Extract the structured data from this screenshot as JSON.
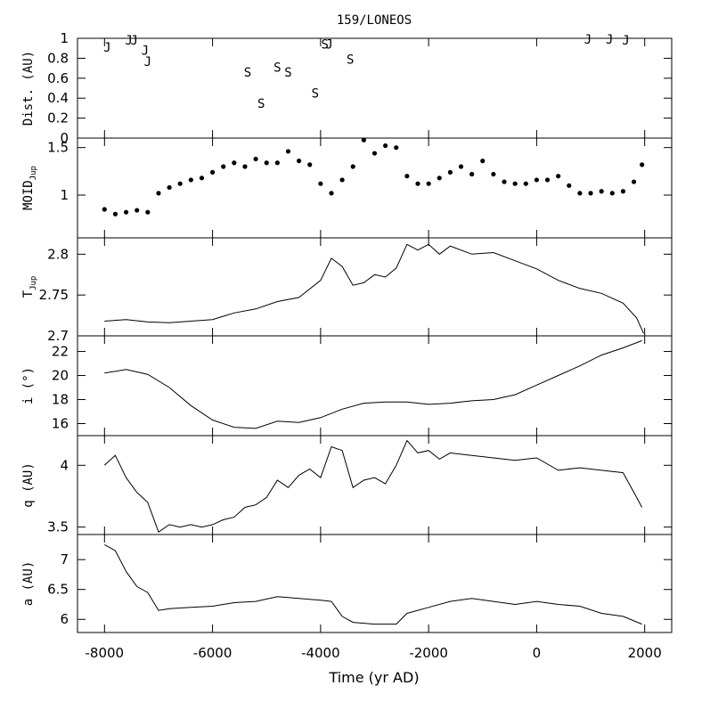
{
  "chart_data": {
    "type": "line",
    "title": "159/LONEOS",
    "xlabel": "Time (yr AD)",
    "xlim": [
      -8500,
      2500
    ],
    "xticks": [
      -8000,
      -6000,
      -4000,
      -2000,
      0,
      2000
    ],
    "grid": false,
    "panels": [
      {
        "id": "dist",
        "type": "scatter",
        "ylabel": "Dist. (AU)",
        "ylim": [
          0,
          1
        ],
        "yticks": [
          0,
          0.2,
          0.4,
          0.6,
          0.8,
          1
        ],
        "ytick_labels": [
          "0",
          "0.2",
          "0.4",
          "0.6",
          "0.8",
          "1"
        ],
        "markers": [
          {
            "t": -7950,
            "v": 0.91,
            "label": "J"
          },
          {
            "t": -7550,
            "v": 0.98,
            "label": "J"
          },
          {
            "t": -7450,
            "v": 0.98,
            "label": "J"
          },
          {
            "t": -7250,
            "v": 0.88,
            "label": "J"
          },
          {
            "t": -7200,
            "v": 0.77,
            "label": "J"
          },
          {
            "t": -5350,
            "v": 0.66,
            "label": "S"
          },
          {
            "t": -5100,
            "v": 0.35,
            "label": "S"
          },
          {
            "t": -4800,
            "v": 0.71,
            "label": "S"
          },
          {
            "t": -4600,
            "v": 0.66,
            "label": "S"
          },
          {
            "t": -4100,
            "v": 0.45,
            "label": "S"
          },
          {
            "t": -3920,
            "v": 0.94,
            "label": "S"
          },
          {
            "t": -3840,
            "v": 0.94,
            "label": "J"
          },
          {
            "t": -3450,
            "v": 0.79,
            "label": "S"
          },
          {
            "t": 950,
            "v": 0.99,
            "label": "J"
          },
          {
            "t": 1350,
            "v": 0.99,
            "label": "J"
          },
          {
            "t": 1650,
            "v": 0.98,
            "label": "J"
          }
        ]
      },
      {
        "id": "moid",
        "type": "scatter",
        "ylabel": "MOID",
        "ylabel_sub": "Jup",
        "ylim": [
          0.55,
          1.6
        ],
        "yticks": [
          1,
          1.5
        ],
        "ytick_labels": [
          "1",
          "1.5"
        ],
        "points": [
          [
            -8000,
            0.85
          ],
          [
            -7800,
            0.8
          ],
          [
            -7600,
            0.82
          ],
          [
            -7400,
            0.84
          ],
          [
            -7200,
            0.82
          ],
          [
            -7000,
            1.02
          ],
          [
            -6800,
            1.08
          ],
          [
            -6600,
            1.12
          ],
          [
            -6400,
            1.16
          ],
          [
            -6200,
            1.18
          ],
          [
            -6000,
            1.24
          ],
          [
            -5800,
            1.3
          ],
          [
            -5600,
            1.34
          ],
          [
            -5400,
            1.3
          ],
          [
            -5200,
            1.38
          ],
          [
            -5000,
            1.34
          ],
          [
            -4800,
            1.34
          ],
          [
            -4600,
            1.46
          ],
          [
            -4400,
            1.36
          ],
          [
            -4200,
            1.32
          ],
          [
            -4000,
            1.12
          ],
          [
            -3800,
            1.02
          ],
          [
            -3600,
            1.16
          ],
          [
            -3400,
            1.3
          ],
          [
            -3200,
            1.58
          ],
          [
            -3000,
            1.44
          ],
          [
            -2800,
            1.52
          ],
          [
            -2600,
            1.5
          ],
          [
            -2400,
            1.2
          ],
          [
            -2200,
            1.12
          ],
          [
            -2000,
            1.12
          ],
          [
            -1800,
            1.18
          ],
          [
            -1600,
            1.24
          ],
          [
            -1400,
            1.3
          ],
          [
            -1200,
            1.22
          ],
          [
            -1000,
            1.36
          ],
          [
            -800,
            1.22
          ],
          [
            -600,
            1.14
          ],
          [
            -400,
            1.12
          ],
          [
            -200,
            1.12
          ],
          [
            0,
            1.16
          ],
          [
            200,
            1.16
          ],
          [
            400,
            1.2
          ],
          [
            600,
            1.1
          ],
          [
            800,
            1.02
          ],
          [
            1000,
            1.02
          ],
          [
            1200,
            1.04
          ],
          [
            1400,
            1.02
          ],
          [
            1600,
            1.04
          ],
          [
            1800,
            1.14
          ],
          [
            1950,
            1.32
          ]
        ]
      },
      {
        "id": "tjup",
        "type": "line",
        "ylabel": "T",
        "ylabel_sub": "Jup",
        "ylim": [
          2.7,
          2.82
        ],
        "yticks": [
          2.7,
          2.75,
          2.8
        ],
        "ytick_labels": [
          "2.7",
          "2.75",
          "2.8"
        ],
        "points": [
          [
            -8000,
            2.718
          ],
          [
            -7600,
            2.72
          ],
          [
            -7200,
            2.717
          ],
          [
            -6800,
            2.716
          ],
          [
            -6400,
            2.718
          ],
          [
            -6000,
            2.72
          ],
          [
            -5600,
            2.728
          ],
          [
            -5200,
            2.733
          ],
          [
            -4800,
            2.742
          ],
          [
            -4400,
            2.747
          ],
          [
            -4000,
            2.768
          ],
          [
            -3800,
            2.795
          ],
          [
            -3600,
            2.785
          ],
          [
            -3400,
            2.762
          ],
          [
            -3200,
            2.765
          ],
          [
            -3000,
            2.775
          ],
          [
            -2800,
            2.772
          ],
          [
            -2600,
            2.783
          ],
          [
            -2400,
            2.812
          ],
          [
            -2200,
            2.805
          ],
          [
            -2000,
            2.812
          ],
          [
            -1800,
            2.8
          ],
          [
            -1600,
            2.81
          ],
          [
            -1200,
            2.8
          ],
          [
            -800,
            2.802
          ],
          [
            -400,
            2.792
          ],
          [
            0,
            2.782
          ],
          [
            400,
            2.768
          ],
          [
            800,
            2.758
          ],
          [
            1200,
            2.752
          ],
          [
            1600,
            2.74
          ],
          [
            1850,
            2.722
          ],
          [
            1980,
            2.703
          ]
        ]
      },
      {
        "id": "inc",
        "type": "line",
        "ylabel": "i (°)",
        "ylim": [
          15,
          23.3
        ],
        "yticks": [
          16,
          18,
          20,
          22
        ],
        "ytick_labels": [
          "16",
          "18",
          "20",
          "22"
        ],
        "points": [
          [
            -8000,
            20.2
          ],
          [
            -7600,
            20.5
          ],
          [
            -7200,
            20.1
          ],
          [
            -6800,
            19
          ],
          [
            -6400,
            17.5
          ],
          [
            -6000,
            16.3
          ],
          [
            -5600,
            15.7
          ],
          [
            -5200,
            15.6
          ],
          [
            -4800,
            16.2
          ],
          [
            -4400,
            16.1
          ],
          [
            -4000,
            16.5
          ],
          [
            -3600,
            17.2
          ],
          [
            -3200,
            17.7
          ],
          [
            -2800,
            17.8
          ],
          [
            -2400,
            17.8
          ],
          [
            -2000,
            17.6
          ],
          [
            -1600,
            17.7
          ],
          [
            -1200,
            17.9
          ],
          [
            -800,
            18
          ],
          [
            -400,
            18.4
          ],
          [
            0,
            19.2
          ],
          [
            400,
            20
          ],
          [
            800,
            20.8
          ],
          [
            1200,
            21.7
          ],
          [
            1600,
            22.3
          ],
          [
            1950,
            22.9
          ]
        ]
      },
      {
        "id": "q",
        "type": "line",
        "ylabel": "q (AU)",
        "ylim": [
          3.44,
          4.24
        ],
        "yticks": [
          3.5,
          4
        ],
        "ytick_labels": [
          "3.5",
          "4"
        ],
        "points": [
          [
            -8000,
            4
          ],
          [
            -7800,
            4.08
          ],
          [
            -7600,
            3.9
          ],
          [
            -7400,
            3.78
          ],
          [
            -7200,
            3.7
          ],
          [
            -7000,
            3.46
          ],
          [
            -6800,
            3.52
          ],
          [
            -6600,
            3.5
          ],
          [
            -6400,
            3.52
          ],
          [
            -6200,
            3.5
          ],
          [
            -6000,
            3.52
          ],
          [
            -5800,
            3.56
          ],
          [
            -5600,
            3.58
          ],
          [
            -5400,
            3.66
          ],
          [
            -5200,
            3.68
          ],
          [
            -5000,
            3.74
          ],
          [
            -4800,
            3.88
          ],
          [
            -4600,
            3.82
          ],
          [
            -4400,
            3.92
          ],
          [
            -4200,
            3.97
          ],
          [
            -4000,
            3.9
          ],
          [
            -3800,
            4.15
          ],
          [
            -3600,
            4.12
          ],
          [
            -3400,
            3.82
          ],
          [
            -3200,
            3.88
          ],
          [
            -3000,
            3.9
          ],
          [
            -2800,
            3.85
          ],
          [
            -2600,
            4
          ],
          [
            -2400,
            4.2
          ],
          [
            -2200,
            4.1
          ],
          [
            -2000,
            4.12
          ],
          [
            -1800,
            4.05
          ],
          [
            -1600,
            4.1
          ],
          [
            -1200,
            4.08
          ],
          [
            -800,
            4.06
          ],
          [
            -400,
            4.04
          ],
          [
            0,
            4.06
          ],
          [
            400,
            3.96
          ],
          [
            800,
            3.98
          ],
          [
            1200,
            3.96
          ],
          [
            1600,
            3.94
          ],
          [
            1800,
            3.78
          ],
          [
            1950,
            3.66
          ]
        ]
      },
      {
        "id": "a",
        "type": "line",
        "ylabel": "a (AU)",
        "ylim": [
          5.78,
          7.42
        ],
        "yticks": [
          6,
          6.5,
          7
        ],
        "ytick_labels": [
          "6",
          "6.5",
          "7"
        ],
        "points": [
          [
            -8000,
            7.25
          ],
          [
            -7800,
            7.15
          ],
          [
            -7600,
            6.8
          ],
          [
            -7400,
            6.55
          ],
          [
            -7200,
            6.45
          ],
          [
            -7000,
            6.15
          ],
          [
            -6800,
            6.18
          ],
          [
            -6400,
            6.2
          ],
          [
            -6000,
            6.22
          ],
          [
            -5600,
            6.28
          ],
          [
            -5200,
            6.3
          ],
          [
            -4800,
            6.38
          ],
          [
            -4400,
            6.35
          ],
          [
            -4000,
            6.32
          ],
          [
            -3800,
            6.3
          ],
          [
            -3600,
            6.05
          ],
          [
            -3400,
            5.95
          ],
          [
            -3000,
            5.92
          ],
          [
            -2600,
            5.92
          ],
          [
            -2400,
            6.1
          ],
          [
            -2000,
            6.2
          ],
          [
            -1600,
            6.3
          ],
          [
            -1200,
            6.35
          ],
          [
            -800,
            6.3
          ],
          [
            -400,
            6.25
          ],
          [
            0,
            6.3
          ],
          [
            400,
            6.25
          ],
          [
            800,
            6.22
          ],
          [
            1200,
            6.1
          ],
          [
            1600,
            6.05
          ],
          [
            1950,
            5.92
          ]
        ]
      }
    ]
  }
}
